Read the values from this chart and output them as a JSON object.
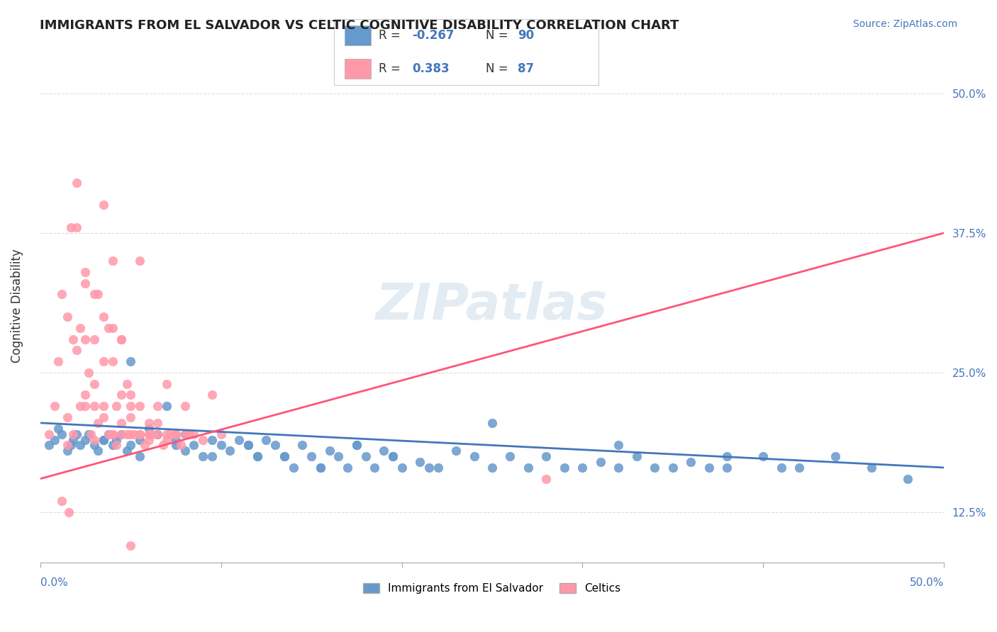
{
  "title": "IMMIGRANTS FROM EL SALVADOR VS CELTIC COGNITIVE DISABILITY CORRELATION CHART",
  "source": "Source: ZipAtlas.com",
  "ylabel": "Cognitive Disability",
  "legend_label1": "Immigrants from El Salvador",
  "legend_label2": "Celtics",
  "blue_color": "#6699CC",
  "pink_color": "#FF99AA",
  "blue_line_color": "#4477BB",
  "pink_line_color": "#FF5577",
  "background_color": "#FFFFFF",
  "grid_color": "#DDDDDD",
  "watermark_text": "ZIPatlas",
  "watermark_color": "#C8D8E8",
  "xmin": 0.0,
  "xmax": 0.5,
  "ymin": 0.08,
  "ymax": 0.54,
  "ytick_values": [
    0.125,
    0.25,
    0.375,
    0.5
  ],
  "ytick_labels": [
    "12.5%",
    "25.0%",
    "37.5%",
    "50.0%"
  ],
  "blue_R": -0.267,
  "blue_N": 90,
  "pink_R": 0.383,
  "pink_N": 87,
  "blue_scatter_x": [
    0.005,
    0.008,
    0.01,
    0.012,
    0.015,
    0.017,
    0.018,
    0.02,
    0.022,
    0.025,
    0.027,
    0.03,
    0.032,
    0.035,
    0.038,
    0.04,
    0.042,
    0.045,
    0.048,
    0.05,
    0.055,
    0.06,
    0.065,
    0.07,
    0.075,
    0.08,
    0.085,
    0.09,
    0.095,
    0.1,
    0.105,
    0.11,
    0.115,
    0.12,
    0.125,
    0.13,
    0.135,
    0.14,
    0.145,
    0.15,
    0.155,
    0.16,
    0.165,
    0.17,
    0.175,
    0.18,
    0.185,
    0.19,
    0.195,
    0.2,
    0.21,
    0.22,
    0.23,
    0.24,
    0.25,
    0.26,
    0.27,
    0.28,
    0.29,
    0.3,
    0.31,
    0.32,
    0.33,
    0.34,
    0.35,
    0.36,
    0.37,
    0.38,
    0.4,
    0.42,
    0.44,
    0.46,
    0.48,
    0.05,
    0.08,
    0.12,
    0.25,
    0.32,
    0.38,
    0.41,
    0.035,
    0.055,
    0.075,
    0.095,
    0.115,
    0.135,
    0.155,
    0.175,
    0.195,
    0.215
  ],
  "blue_scatter_y": [
    0.185,
    0.19,
    0.2,
    0.195,
    0.18,
    0.185,
    0.19,
    0.195,
    0.185,
    0.19,
    0.195,
    0.185,
    0.18,
    0.19,
    0.195,
    0.185,
    0.19,
    0.195,
    0.18,
    0.185,
    0.19,
    0.2,
    0.195,
    0.22,
    0.19,
    0.18,
    0.185,
    0.175,
    0.19,
    0.185,
    0.18,
    0.19,
    0.185,
    0.175,
    0.19,
    0.185,
    0.175,
    0.165,
    0.185,
    0.175,
    0.165,
    0.18,
    0.175,
    0.165,
    0.185,
    0.175,
    0.165,
    0.18,
    0.175,
    0.165,
    0.17,
    0.165,
    0.18,
    0.175,
    0.165,
    0.175,
    0.165,
    0.175,
    0.165,
    0.165,
    0.17,
    0.165,
    0.175,
    0.165,
    0.165,
    0.17,
    0.165,
    0.165,
    0.175,
    0.165,
    0.175,
    0.165,
    0.155,
    0.26,
    0.195,
    0.175,
    0.205,
    0.185,
    0.175,
    0.165,
    0.19,
    0.175,
    0.185,
    0.175,
    0.185,
    0.175,
    0.165,
    0.185,
    0.175,
    0.165
  ],
  "pink_scatter_x": [
    0.005,
    0.008,
    0.01,
    0.012,
    0.015,
    0.017,
    0.018,
    0.02,
    0.022,
    0.025,
    0.027,
    0.03,
    0.032,
    0.035,
    0.038,
    0.04,
    0.042,
    0.045,
    0.048,
    0.05,
    0.055,
    0.06,
    0.065,
    0.07,
    0.075,
    0.08,
    0.085,
    0.09,
    0.095,
    0.1,
    0.02,
    0.025,
    0.03,
    0.035,
    0.04,
    0.045,
    0.015,
    0.02,
    0.025,
    0.03,
    0.035,
    0.04,
    0.045,
    0.05,
    0.055,
    0.06,
    0.065,
    0.07,
    0.025,
    0.03,
    0.035,
    0.04,
    0.045,
    0.05,
    0.055,
    0.06,
    0.065,
    0.07,
    0.075,
    0.08,
    0.025,
    0.03,
    0.035,
    0.04,
    0.045,
    0.05,
    0.055,
    0.06,
    0.28,
    0.05,
    0.015,
    0.018,
    0.022,
    0.028,
    0.032,
    0.038,
    0.042,
    0.048,
    0.052,
    0.058,
    0.062,
    0.068,
    0.072,
    0.078,
    0.082,
    0.012,
    0.016
  ],
  "pink_scatter_y": [
    0.195,
    0.22,
    0.26,
    0.32,
    0.3,
    0.38,
    0.28,
    0.42,
    0.29,
    0.33,
    0.25,
    0.22,
    0.32,
    0.4,
    0.29,
    0.35,
    0.22,
    0.28,
    0.24,
    0.23,
    0.35,
    0.195,
    0.22,
    0.24,
    0.195,
    0.22,
    0.195,
    0.19,
    0.23,
    0.195,
    0.38,
    0.22,
    0.32,
    0.3,
    0.29,
    0.28,
    0.21,
    0.27,
    0.23,
    0.19,
    0.26,
    0.195,
    0.23,
    0.21,
    0.22,
    0.195,
    0.205,
    0.195,
    0.34,
    0.28,
    0.22,
    0.26,
    0.195,
    0.22,
    0.195,
    0.205,
    0.195,
    0.19,
    0.195,
    0.195,
    0.28,
    0.24,
    0.21,
    0.195,
    0.205,
    0.195,
    0.195,
    0.19,
    0.155,
    0.095,
    0.185,
    0.195,
    0.22,
    0.195,
    0.205,
    0.195,
    0.185,
    0.195,
    0.195,
    0.185,
    0.195,
    0.185,
    0.195,
    0.185,
    0.195,
    0.135,
    0.125
  ],
  "blue_trend_x": [
    0.0,
    0.5
  ],
  "blue_trend_y_start": 0.205,
  "blue_trend_y_end": 0.165,
  "pink_trend_x": [
    0.0,
    0.5
  ],
  "pink_trend_y_start": 0.155,
  "pink_trend_y_end": 0.375
}
